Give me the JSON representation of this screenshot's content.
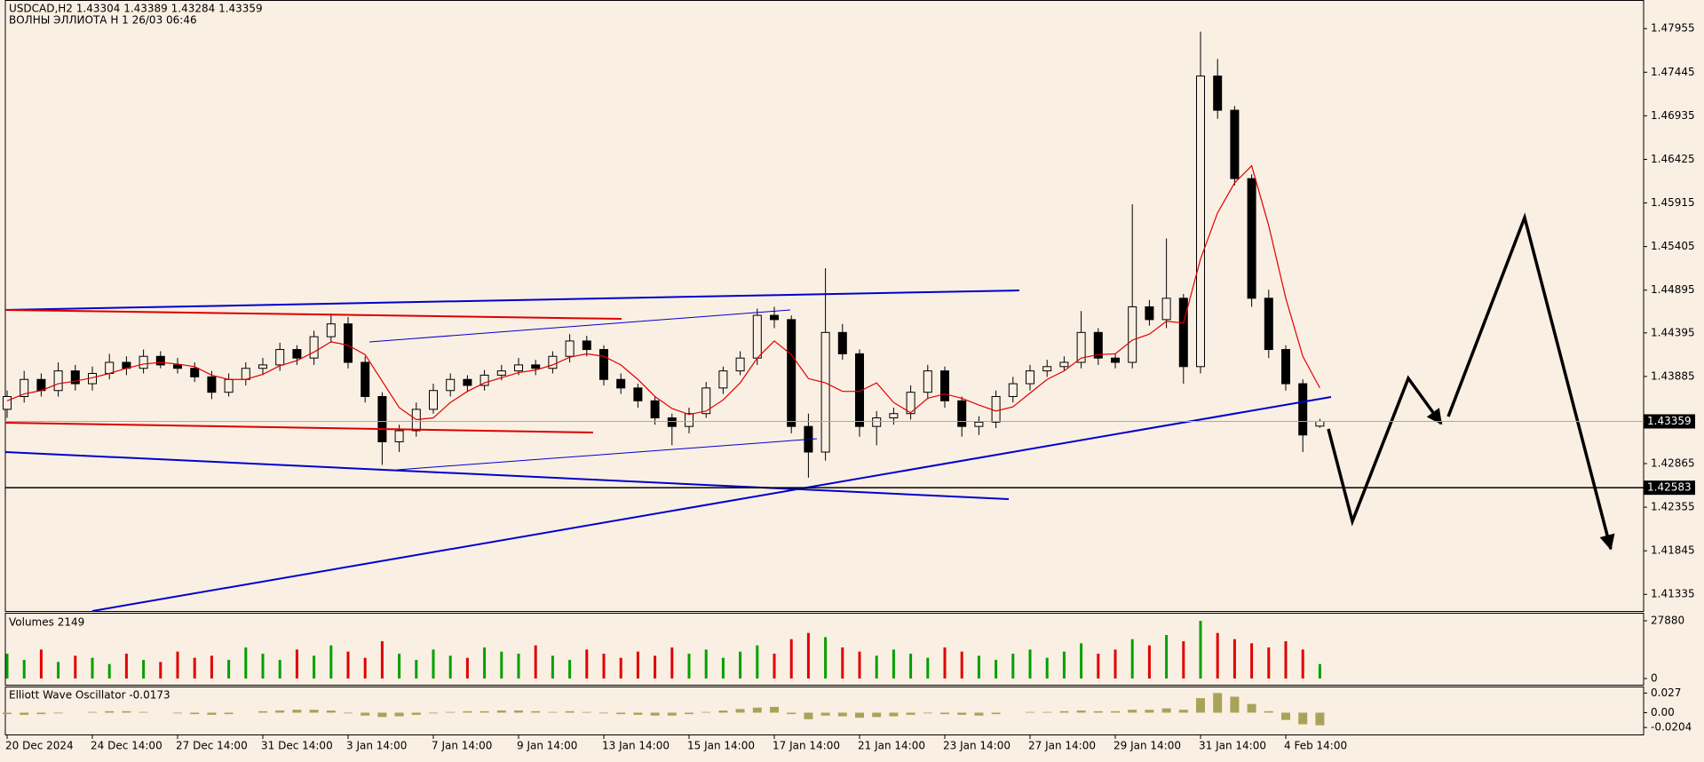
{
  "chart_data": [
    {
      "type": "candlestick",
      "title": "USDCAD,H2  1.43304 1.43389 1.43284 1.43359",
      "subtitle": "ВОЛНЫ ЭЛЛИОТА H 1 26/03 06:46",
      "candle_color": "#000000",
      "up_fill": "#faefe3",
      "open": [
        1.435,
        1.4365,
        1.4385,
        1.4372,
        1.4395,
        1.438,
        1.4392,
        1.4405,
        1.4398,
        1.4412,
        1.4402,
        1.4398,
        1.4388,
        1.437,
        1.4385,
        1.4398,
        1.4402,
        1.442,
        1.441,
        1.4435,
        1.445,
        1.4405,
        1.4365,
        1.4312,
        1.4325,
        1.435,
        1.4372,
        1.4385,
        1.4378,
        1.439,
        1.4395,
        1.4402,
        1.4398,
        1.4412,
        1.443,
        1.442,
        1.4385,
        1.4375,
        1.436,
        1.434,
        1.433,
        1.4345,
        1.4375,
        1.4395,
        1.441,
        1.446,
        1.4455,
        1.433,
        1.43,
        1.444,
        1.4415,
        1.433,
        1.434,
        1.4345,
        1.437,
        1.4395,
        1.436,
        1.433,
        1.4335,
        1.4365,
        1.438,
        1.4395,
        1.44,
        1.4405,
        1.444,
        1.441,
        1.4405,
        1.447,
        1.4455,
        1.448,
        1.44,
        1.474,
        1.47,
        1.462,
        1.448,
        1.442,
        1.438,
        1.43304
      ],
      "high": [
        1.4372,
        1.4395,
        1.4392,
        1.4405,
        1.4402,
        1.44,
        1.4415,
        1.4412,
        1.442,
        1.4418,
        1.441,
        1.4405,
        1.4395,
        1.4392,
        1.4405,
        1.441,
        1.4428,
        1.4425,
        1.4442,
        1.4462,
        1.4458,
        1.4412,
        1.437,
        1.4332,
        1.4358,
        1.438,
        1.4392,
        1.439,
        1.4396,
        1.4402,
        1.441,
        1.4408,
        1.4418,
        1.4438,
        1.4436,
        1.4425,
        1.4392,
        1.438,
        1.4365,
        1.4345,
        1.4352,
        1.4382,
        1.44,
        1.4418,
        1.4468,
        1.447,
        1.446,
        1.4345,
        1.4515,
        1.445,
        1.442,
        1.4348,
        1.4352,
        1.4378,
        1.4402,
        1.44,
        1.4365,
        1.4342,
        1.4372,
        1.4388,
        1.4402,
        1.4408,
        1.4412,
        1.4465,
        1.4445,
        1.4415,
        1.459,
        1.4478,
        1.455,
        1.4485,
        1.4792,
        1.476,
        1.4705,
        1.4625,
        1.449,
        1.4425,
        1.4385,
        1.43389
      ],
      "low": [
        1.434,
        1.4358,
        1.4365,
        1.4365,
        1.4372,
        1.4372,
        1.4385,
        1.439,
        1.4392,
        1.4398,
        1.4392,
        1.4382,
        1.4362,
        1.4365,
        1.4378,
        1.439,
        1.4395,
        1.4402,
        1.4402,
        1.4428,
        1.4398,
        1.4358,
        1.4285,
        1.43,
        1.4318,
        1.4345,
        1.4365,
        1.437,
        1.4372,
        1.4384,
        1.439,
        1.439,
        1.4392,
        1.4405,
        1.4412,
        1.4378,
        1.4368,
        1.4352,
        1.4332,
        1.4308,
        1.4322,
        1.434,
        1.4368,
        1.439,
        1.4402,
        1.4445,
        1.4322,
        1.427,
        1.429,
        1.4408,
        1.4318,
        1.4308,
        1.4332,
        1.4338,
        1.4362,
        1.4352,
        1.4318,
        1.432,
        1.4328,
        1.4358,
        1.4372,
        1.4388,
        1.4395,
        1.4398,
        1.4402,
        1.4398,
        1.4398,
        1.4448,
        1.4445,
        1.438,
        1.4392,
        1.469,
        1.4612,
        1.447,
        1.441,
        1.4372,
        1.43,
        1.43284
      ],
      "close": [
        1.4365,
        1.4385,
        1.4372,
        1.4395,
        1.438,
        1.4392,
        1.4405,
        1.4398,
        1.4412,
        1.4402,
        1.4398,
        1.4388,
        1.437,
        1.4385,
        1.4398,
        1.4402,
        1.442,
        1.441,
        1.4435,
        1.445,
        1.4405,
        1.4365,
        1.4312,
        1.4325,
        1.435,
        1.4372,
        1.4385,
        1.4378,
        1.439,
        1.4395,
        1.4402,
        1.4398,
        1.4412,
        1.443,
        1.442,
        1.4385,
        1.4375,
        1.436,
        1.434,
        1.433,
        1.4345,
        1.4375,
        1.4395,
        1.441,
        1.446,
        1.4455,
        1.433,
        1.43,
        1.444,
        1.4415,
        1.433,
        1.434,
        1.4345,
        1.437,
        1.4395,
        1.436,
        1.433,
        1.4335,
        1.4365,
        1.438,
        1.4395,
        1.44,
        1.4405,
        1.444,
        1.441,
        1.4405,
        1.447,
        1.4455,
        1.448,
        1.44,
        1.474,
        1.47,
        1.462,
        1.448,
        1.442,
        1.438,
        1.432,
        1.43359
      ],
      "ma": {
        "color": "#e00000",
        "values": [
          1.436,
          1.4368,
          1.4372,
          1.438,
          1.4383,
          1.4387,
          1.4392,
          1.4398,
          1.4403,
          1.4405,
          1.4403,
          1.44,
          1.439,
          1.4385,
          1.4385,
          1.4391,
          1.4401,
          1.4407,
          1.4417,
          1.4429,
          1.4425,
          1.4414,
          1.4383,
          1.4352,
          1.4338,
          1.434,
          1.4358,
          1.4371,
          1.4381,
          1.4387,
          1.4393,
          1.4396,
          1.4402,
          1.4411,
          1.4415,
          1.4412,
          1.4402,
          1.4385,
          1.4365,
          1.4351,
          1.4344,
          1.4348,
          1.4361,
          1.4381,
          1.441,
          1.443,
          1.4414,
          1.4386,
          1.4381,
          1.4371,
          1.4371,
          1.4381,
          1.4358,
          1.4346,
          1.4363,
          1.4368,
          1.4363,
          1.4355,
          1.4348,
          1.4353,
          1.4369,
          1.4385,
          1.4395,
          1.441,
          1.4414,
          1.4415,
          1.4431,
          1.4438,
          1.4453,
          1.4451,
          1.4526,
          1.458,
          1.4615,
          1.4635,
          1.4565,
          1.448,
          1.4412,
          1.4375
        ]
      },
      "hline": 1.42583,
      "ylim": [
        1.4114,
        1.4829
      ],
      "yticks": [
        1.41335,
        1.41845,
        1.42355,
        1.42865,
        1.43885,
        1.44395,
        1.44895,
        1.45405,
        1.45915,
        1.46425,
        1.46935,
        1.47445,
        1.47955
      ],
      "xticks": [
        {
          "value": 0,
          "label": "20 Dec 2024"
        },
        {
          "value": 5,
          "label": "24 Dec 14:00"
        },
        {
          "value": 10,
          "label": "27 Dec 14:00"
        },
        {
          "value": 15,
          "label": "31 Dec 14:00"
        },
        {
          "value": 20,
          "label": "3 Jan 14:00"
        },
        {
          "value": 25,
          "label": "7 Jan 14:00"
        },
        {
          "value": 30,
          "label": "9 Jan 14:00"
        },
        {
          "value": 35,
          "label": "13 Jan 14:00"
        },
        {
          "value": 40,
          "label": "15 Jan 14:00"
        },
        {
          "value": 45,
          "label": "17 Jan 14:00"
        },
        {
          "value": 50,
          "label": "21 Jan 14:00"
        },
        {
          "value": 55,
          "label": "23 Jan 14:00"
        },
        {
          "value": 60,
          "label": "27 Jan 14:00"
        },
        {
          "value": 65,
          "label": "29 Jan 14:00"
        },
        {
          "value": 70,
          "label": "31 Jan 14:00"
        },
        {
          "value": 75,
          "label": "4 Feb 14:00"
        }
      ]
    },
    {
      "type": "bar",
      "title": "Volumes 2149",
      "up_color": "#00a000",
      "down_color": "#e00000",
      "values": [
        12000,
        9000,
        14000,
        8000,
        11000,
        10000,
        7000,
        12000,
        9000,
        8000,
        13000,
        10000,
        11000,
        9000,
        15000,
        12000,
        9000,
        14000,
        11000,
        16000,
        13000,
        10000,
        18000,
        12000,
        9000,
        14000,
        11000,
        10000,
        15000,
        13000,
        12000,
        16000,
        11000,
        9000,
        14000,
        12000,
        10000,
        13000,
        11000,
        15000,
        12000,
        14000,
        10000,
        13000,
        16000,
        12000,
        19000,
        22000,
        20000,
        15000,
        13000,
        11000,
        14000,
        12000,
        10000,
        15000,
        13000,
        11000,
        9000,
        12000,
        14000,
        10000,
        13000,
        17000,
        12000,
        14000,
        19000,
        16000,
        21000,
        18000,
        27880,
        22000,
        19000,
        17000,
        15000,
        18000,
        14000,
        7000
      ],
      "ylim": [
        -3000,
        31740
      ],
      "yticks": [
        0,
        27880
      ]
    },
    {
      "type": "bar",
      "title": "Elliott Wave Oscillator -0.0173",
      "color": "#a9a35a",
      "values": [
        -0.002,
        -0.003,
        -0.002,
        -0.001,
        0,
        0.001,
        0.002,
        0.002,
        0.001,
        0,
        -0.001,
        -0.002,
        -0.003,
        -0.002,
        0,
        0.002,
        0.003,
        0.004,
        0.004,
        0.003,
        -0.001,
        -0.004,
        -0.006,
        -0.005,
        -0.003,
        -0.001,
        0.001,
        0.002,
        0.002,
        0.003,
        0.003,
        0.002,
        0.001,
        0.002,
        0.001,
        -0.001,
        -0.002,
        -0.003,
        -0.004,
        -0.004,
        -0.002,
        0.001,
        0.003,
        0.005,
        0.007,
        0.008,
        -0.002,
        -0.009,
        -0.004,
        -0.005,
        -0.007,
        -0.006,
        -0.005,
        -0.003,
        -0.001,
        -0.002,
        -0.003,
        -0.004,
        -0.002,
        0,
        0.001,
        0.001,
        0.002,
        0.003,
        0.002,
        0.002,
        0.004,
        0.004,
        0.006,
        0.004,
        0.02,
        0.027,
        0.022,
        0.012,
        0.002,
        -0.01,
        -0.016,
        -0.0173
      ],
      "ylim": [
        -0.03,
        0.036
      ],
      "yticks": [
        0.027,
        {
          "value": 0,
          "label": "0.00"
        },
        -0.0204
      ]
    }
  ]
}
